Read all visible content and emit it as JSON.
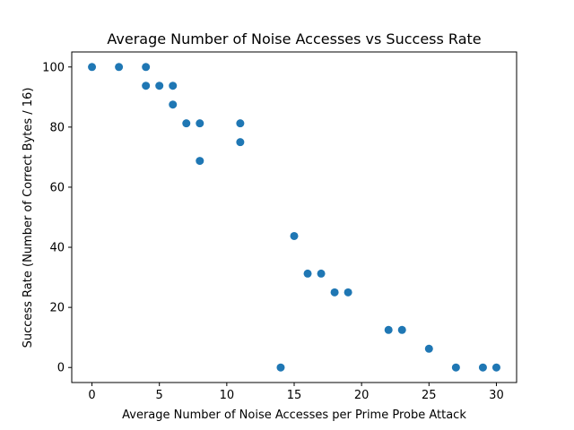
{
  "chart_data": {
    "type": "scatter",
    "title": "Average Number of Noise Accesses vs Success Rate",
    "xlabel": "Average Number of Noise Accesses per Prime Probe Attack",
    "ylabel": "Success Rate (Number of Correct Bytes / 16)",
    "xlim": [
      -1.5,
      31.5
    ],
    "ylim": [
      -5,
      105
    ],
    "xticks": [
      0,
      5,
      10,
      15,
      20,
      25,
      30
    ],
    "yticks": [
      0,
      20,
      40,
      60,
      80,
      100
    ],
    "grid": false,
    "marker_color": "#1f77b4",
    "points": [
      {
        "x": 0,
        "y": 100
      },
      {
        "x": 2,
        "y": 100
      },
      {
        "x": 4,
        "y": 100
      },
      {
        "x": 4,
        "y": 93.75
      },
      {
        "x": 5,
        "y": 93.75
      },
      {
        "x": 6,
        "y": 93.75
      },
      {
        "x": 6,
        "y": 87.5
      },
      {
        "x": 7,
        "y": 81.25
      },
      {
        "x": 8,
        "y": 81.25
      },
      {
        "x": 11,
        "y": 81.25
      },
      {
        "x": 11,
        "y": 75
      },
      {
        "x": 8,
        "y": 68.75
      },
      {
        "x": 15,
        "y": 43.75
      },
      {
        "x": 16,
        "y": 31.25
      },
      {
        "x": 17,
        "y": 31.25
      },
      {
        "x": 18,
        "y": 25
      },
      {
        "x": 19,
        "y": 25
      },
      {
        "x": 22,
        "y": 12.5
      },
      {
        "x": 23,
        "y": 12.5
      },
      {
        "x": 25,
        "y": 6.25
      },
      {
        "x": 14,
        "y": 0
      },
      {
        "x": 27,
        "y": 0
      },
      {
        "x": 29,
        "y": 0
      },
      {
        "x": 30,
        "y": 0
      }
    ]
  }
}
